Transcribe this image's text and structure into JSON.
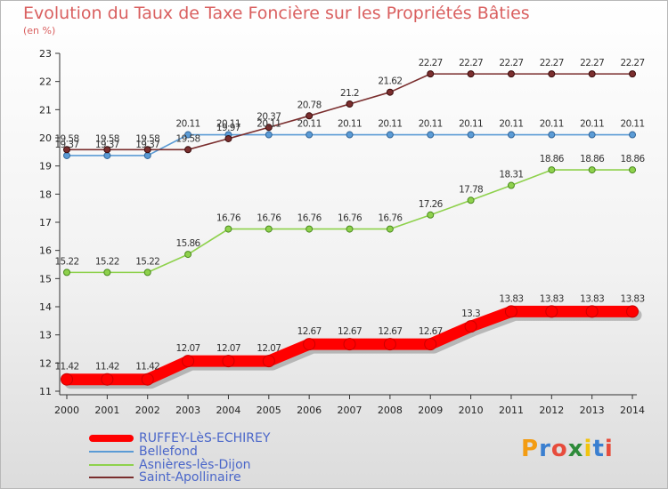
{
  "title": "Evolution du Taux de Taxe Foncière sur les Propriétés Bâties",
  "unit_label": "(en %)",
  "brand": "Proxiti",
  "chart_data": {
    "type": "line",
    "title": "Evolution du Taux de Taxe Foncière sur les Propriétés Bâties",
    "ylabel": "(en %)",
    "xlabel": "",
    "ylim": [
      11,
      23
    ],
    "x": [
      "2000",
      "2001",
      "2002",
      "2003",
      "2004",
      "2005",
      "2006",
      "2007",
      "2008",
      "2009",
      "2010",
      "2011",
      "2012",
      "2013",
      "2014"
    ],
    "y_ticks": [
      "11",
      "12",
      "13",
      "14",
      "15",
      "16",
      "17",
      "18",
      "19",
      "20",
      "21",
      "22",
      "23"
    ],
    "grid": false,
    "legend_position": "bottom-left",
    "series": [
      {
        "name": "RUFFEY-LèS-ECHIREY",
        "color": "#ff0000",
        "values": [
          11.42,
          11.42,
          11.42,
          12.07,
          12.07,
          12.07,
          12.67,
          12.67,
          12.67,
          12.67,
          13.3,
          13.83,
          13.83,
          13.83,
          13.83
        ],
        "labels": [
          "11.42",
          "11.42",
          "11.42",
          "12.07",
          "12.07",
          "12.07",
          "12.67",
          "12.67",
          "12.67",
          "12.67",
          "13.3",
          "13.83",
          "13.83",
          "13.83",
          "13.83"
        ]
      },
      {
        "name": "Bellefond",
        "color": "#5b9bd5",
        "values": [
          19.37,
          19.37,
          19.37,
          20.11,
          20.11,
          20.11,
          20.11,
          20.11,
          20.11,
          20.11,
          20.11,
          20.11,
          20.11,
          20.11,
          20.11
        ],
        "labels": [
          "19.37",
          "19.37",
          "19.37",
          "20.11",
          "20.11",
          "20.11",
          "20.11",
          "20.11",
          "20.11",
          "20.11",
          "20.11",
          "20.11",
          "20.11",
          "20.11",
          "20.11"
        ]
      },
      {
        "name": "Asnières-lès-Dijon",
        "color": "#8ed14c",
        "values": [
          15.22,
          15.22,
          15.22,
          15.86,
          16.76,
          16.76,
          16.76,
          16.76,
          16.76,
          17.26,
          17.78,
          18.31,
          18.86,
          18.86,
          18.86
        ],
        "labels": [
          "15.22",
          "15.22",
          "15.22",
          "15.86",
          "16.76",
          "16.76",
          "16.76",
          "16.76",
          "16.76",
          "17.26",
          "17.78",
          "18.31",
          "18.86",
          "18.86",
          "18.86"
        ]
      },
      {
        "name": "Saint-Apollinaire",
        "color": "#7a2e2e",
        "values": [
          19.58,
          19.58,
          19.58,
          19.58,
          19.97,
          20.37,
          20.78,
          21.2,
          21.62,
          22.27,
          22.27,
          22.27,
          22.27,
          22.27,
          22.27
        ],
        "labels": [
          "19.58",
          "19.58",
          "19.58",
          "19.58",
          "19.97",
          "20.37",
          "20.78",
          "21.2",
          "21.62",
          "22.27",
          "22.27",
          "22.27",
          "22.27",
          "22.27",
          "22.27"
        ]
      }
    ]
  }
}
